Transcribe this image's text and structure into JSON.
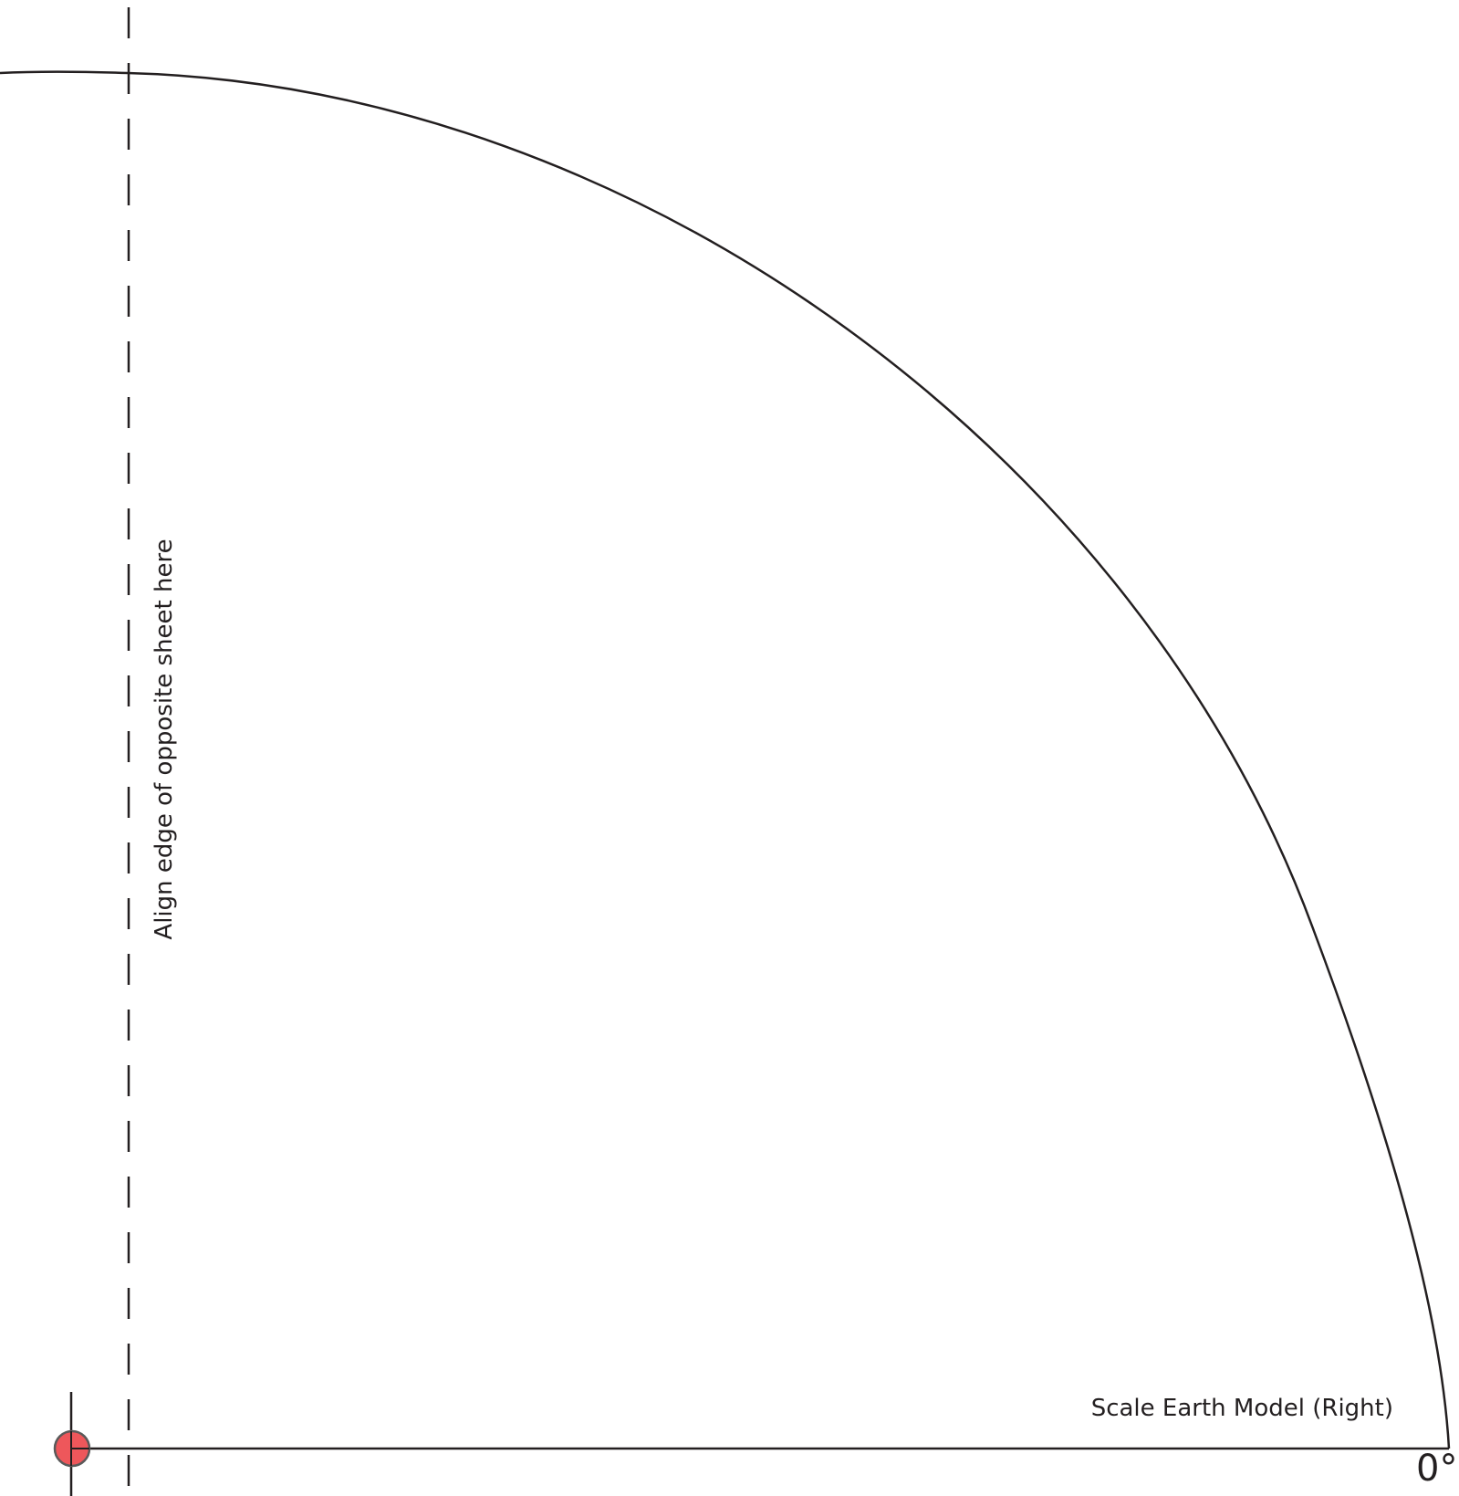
{
  "labels": {
    "align_note": "Align edge of opposite sheet here",
    "model_title": "Scale Earth Model (Right)",
    "angle": "0°"
  },
  "colors": {
    "stroke": "#231f20",
    "pivot_fill": "#ee575b",
    "pivot_stroke": "#5a5a5a"
  },
  "icons": {
    "pivot": "red-pivot-dot-icon"
  }
}
